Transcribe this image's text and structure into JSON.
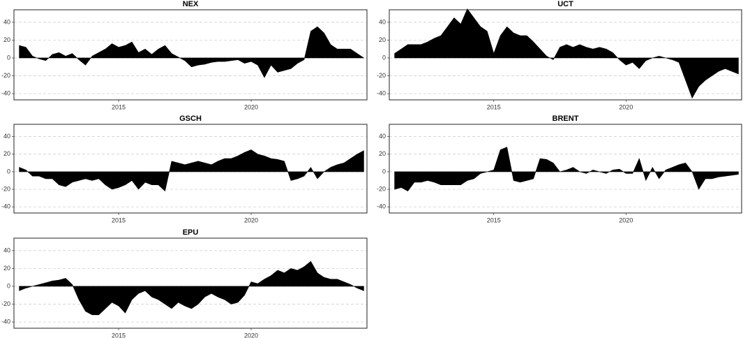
{
  "chart_data": [
    {
      "type": "area",
      "title": "NEX",
      "color": "#000000",
      "grid": true,
      "x": [
        2011.25,
        2011.5,
        2011.75,
        2012,
        2012.25,
        2012.5,
        2012.75,
        2013,
        2013.25,
        2013.5,
        2013.75,
        2014,
        2014.25,
        2014.5,
        2014.75,
        2015,
        2015.25,
        2015.5,
        2015.75,
        2016,
        2016.25,
        2016.5,
        2016.75,
        2017,
        2017.25,
        2017.5,
        2017.75,
        2018,
        2018.25,
        2018.5,
        2018.75,
        2019,
        2019.25,
        2019.5,
        2019.75,
        2020,
        2020.25,
        2020.5,
        2020.75,
        2021,
        2021.25,
        2021.5,
        2021.75,
        2022,
        2022.25,
        2022.5,
        2022.75,
        2023,
        2023.25,
        2023.5,
        2023.75,
        2024,
        2024.25
      ],
      "values": [
        14,
        12,
        2,
        -1,
        -3,
        4,
        6,
        2,
        5,
        -2,
        -8,
        2,
        6,
        10,
        16,
        12,
        14,
        18,
        6,
        10,
        4,
        10,
        14,
        5,
        1,
        -3,
        -10,
        -8,
        -7,
        -5,
        -4,
        -4,
        -3,
        -2,
        -6,
        -4,
        -8,
        -22,
        -8,
        -16,
        -14,
        -12,
        -6,
        -2,
        30,
        35,
        28,
        15,
        10,
        10,
        10,
        5,
        0
      ],
      "xlim": [
        2011.05,
        2024.37
      ],
      "xticks": [
        2015,
        2020
      ],
      "ylim": [
        -47,
        54
      ],
      "yticks": [
        -40,
        -20,
        0,
        20,
        40
      ]
    },
    {
      "type": "area",
      "title": "UCT",
      "color": "#000000",
      "grid": true,
      "x": [
        2011.25,
        2011.5,
        2011.75,
        2012,
        2012.25,
        2012.5,
        2012.75,
        2013,
        2013.25,
        2013.5,
        2013.75,
        2014,
        2014.25,
        2014.5,
        2014.75,
        2015,
        2015.25,
        2015.5,
        2015.75,
        2016,
        2016.25,
        2016.5,
        2016.75,
        2017,
        2017.25,
        2017.5,
        2017.75,
        2018,
        2018.25,
        2018.5,
        2018.75,
        2019,
        2019.25,
        2019.5,
        2019.75,
        2020,
        2020.25,
        2020.5,
        2020.75,
        2021,
        2021.25,
        2021.5,
        2021.75,
        2022,
        2022.25,
        2022.5,
        2022.75,
        2023,
        2023.25,
        2023.5,
        2023.75,
        2024,
        2024.25
      ],
      "values": [
        5,
        10,
        15,
        15,
        15,
        18,
        22,
        25,
        35,
        45,
        38,
        55,
        45,
        35,
        30,
        5,
        25,
        35,
        28,
        25,
        25,
        18,
        10,
        2,
        -2,
        12,
        15,
        12,
        15,
        12,
        10,
        12,
        10,
        6,
        -2,
        -8,
        -5,
        -12,
        -3,
        0,
        2,
        0,
        -2,
        -5,
        -25,
        -45,
        -32,
        -25,
        -20,
        -15,
        -12,
        -15,
        -18
      ],
      "xlim": [
        2011.05,
        2024.37
      ],
      "xticks": [
        2015,
        2020
      ],
      "ylim": [
        -47,
        54
      ],
      "yticks": [
        -40,
        -20,
        0,
        20,
        40
      ]
    },
    {
      "type": "area",
      "title": "GSCH",
      "color": "#000000",
      "grid": true,
      "x": [
        2011.25,
        2011.5,
        2011.75,
        2012,
        2012.25,
        2012.5,
        2012.75,
        2013,
        2013.25,
        2013.5,
        2013.75,
        2014,
        2014.25,
        2014.5,
        2014.75,
        2015,
        2015.25,
        2015.5,
        2015.75,
        2016,
        2016.25,
        2016.5,
        2016.75,
        2017,
        2017.25,
        2017.5,
        2017.75,
        2018,
        2018.25,
        2018.5,
        2018.75,
        2019,
        2019.25,
        2019.5,
        2019.75,
        2020,
        2020.25,
        2020.5,
        2020.75,
        2021,
        2021.25,
        2021.5,
        2021.75,
        2022,
        2022.25,
        2022.5,
        2022.75,
        2023,
        2023.25,
        2023.5,
        2023.75,
        2024,
        2024.25
      ],
      "values": [
        5,
        2,
        -5,
        -5,
        -8,
        -8,
        -15,
        -17,
        -12,
        -10,
        -8,
        -10,
        -8,
        -15,
        -20,
        -18,
        -15,
        -10,
        -20,
        -12,
        -15,
        -15,
        -22,
        12,
        10,
        8,
        10,
        12,
        10,
        8,
        12,
        15,
        15,
        18,
        22,
        25,
        20,
        18,
        15,
        14,
        12,
        -10,
        -8,
        -5,
        5,
        -8,
        0,
        5,
        8,
        10,
        15,
        20,
        24
      ],
      "xlim": [
        2011.05,
        2024.37
      ],
      "xticks": [
        2015,
        2020
      ],
      "ylim": [
        -47,
        54
      ],
      "yticks": [
        -40,
        -20,
        0,
        20,
        40
      ]
    },
    {
      "type": "area",
      "title": "BRENT",
      "color": "#000000",
      "grid": true,
      "x": [
        2011.25,
        2011.5,
        2011.75,
        2012,
        2012.25,
        2012.5,
        2012.75,
        2013,
        2013.25,
        2013.5,
        2013.75,
        2014,
        2014.25,
        2014.5,
        2014.75,
        2015,
        2015.25,
        2015.5,
        2015.75,
        2016,
        2016.25,
        2016.5,
        2016.75,
        2017,
        2017.25,
        2017.5,
        2017.75,
        2018,
        2018.25,
        2018.5,
        2018.75,
        2019,
        2019.25,
        2019.5,
        2019.75,
        2020,
        2020.25,
        2020.5,
        2020.75,
        2021,
        2021.25,
        2021.5,
        2021.75,
        2022,
        2022.25,
        2022.5,
        2022.75,
        2023,
        2023.25,
        2023.5,
        2023.75,
        2024,
        2024.25
      ],
      "values": [
        -20,
        -18,
        -22,
        -12,
        -12,
        -10,
        -12,
        -15,
        -15,
        -15,
        -15,
        -10,
        -8,
        -2,
        0,
        2,
        25,
        28,
        -10,
        -12,
        -10,
        -8,
        15,
        14,
        10,
        0,
        2,
        5,
        0,
        -2,
        2,
        0,
        -2,
        2,
        3,
        -2,
        -2,
        15,
        -10,
        5,
        -8,
        2,
        5,
        8,
        10,
        0,
        -20,
        -8,
        -8,
        -6,
        -5,
        -4,
        -3
      ],
      "xlim": [
        2011.05,
        2024.37
      ],
      "xticks": [
        2015,
        2020
      ],
      "ylim": [
        -47,
        54
      ],
      "yticks": [
        -40,
        -20,
        0,
        20,
        40
      ]
    },
    {
      "type": "area",
      "title": "EPU",
      "color": "#000000",
      "grid": true,
      "x": [
        2011.25,
        2011.5,
        2011.75,
        2012,
        2012.25,
        2012.5,
        2012.75,
        2013,
        2013.25,
        2013.5,
        2013.75,
        2014,
        2014.25,
        2014.5,
        2014.75,
        2015,
        2015.25,
        2015.5,
        2015.75,
        2016,
        2016.25,
        2016.5,
        2016.75,
        2017,
        2017.25,
        2017.5,
        2017.75,
        2018,
        2018.25,
        2018.5,
        2018.75,
        2019,
        2019.25,
        2019.5,
        2019.75,
        2020,
        2020.25,
        2020.5,
        2020.75,
        2021,
        2021.25,
        2021.5,
        2021.75,
        2022,
        2022.25,
        2022.5,
        2022.75,
        2023,
        2023.25,
        2023.5,
        2023.75,
        2024,
        2024.25
      ],
      "values": [
        -5,
        -2,
        0,
        2,
        4,
        6,
        7,
        9,
        2,
        -15,
        -28,
        -32,
        -32,
        -25,
        -18,
        -22,
        -30,
        -15,
        -8,
        -5,
        -12,
        -15,
        -20,
        -25,
        -18,
        -22,
        -25,
        -20,
        -12,
        -8,
        -12,
        -15,
        -20,
        -18,
        -10,
        5,
        3,
        8,
        12,
        18,
        15,
        20,
        18,
        22,
        28,
        15,
        10,
        8,
        8,
        5,
        2,
        -2,
        -5
      ],
      "xlim": [
        2011.05,
        2024.37
      ],
      "xticks": [
        2015,
        2020
      ],
      "ylim": [
        -47,
        54
      ],
      "yticks": [
        -40,
        -20,
        0,
        20,
        40
      ]
    }
  ]
}
